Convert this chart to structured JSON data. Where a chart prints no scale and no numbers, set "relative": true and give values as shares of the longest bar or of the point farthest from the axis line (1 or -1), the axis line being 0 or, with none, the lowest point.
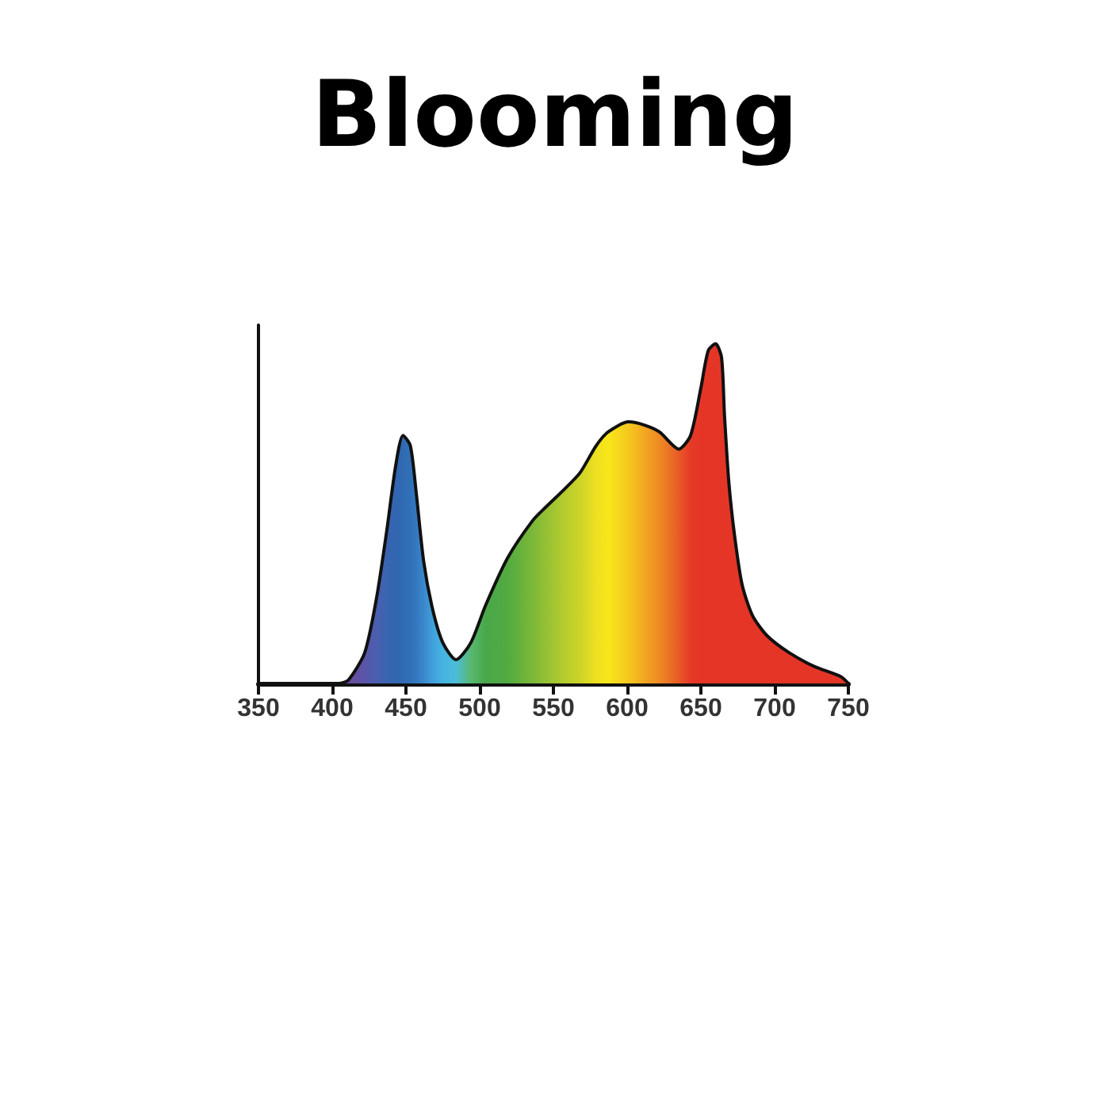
{
  "chart_data": {
    "type": "area",
    "title": "Blooming",
    "relative": true,
    "x": [
      405,
      411,
      422,
      430,
      437,
      443,
      448,
      453,
      457,
      462,
      468,
      475,
      484,
      494,
      504,
      519,
      536,
      545,
      557,
      568,
      579,
      587,
      601,
      612,
      622,
      635,
      643,
      650,
      655,
      660,
      664,
      666,
      669,
      673,
      678,
      685,
      695,
      710,
      727,
      745,
      750
    ],
    "series": [
      {
        "color": "#111111",
        "values": [
          0,
          0.01,
          0.09,
          0.25,
          0.45,
          0.64,
          0.73,
          0.7,
          0.56,
          0.36,
          0.22,
          0.12,
          0.07,
          0.12,
          0.23,
          0.37,
          0.48,
          0.52,
          0.57,
          0.62,
          0.7,
          0.74,
          0.77,
          0.76,
          0.74,
          0.69,
          0.73,
          0.87,
          0.98,
          1,
          0.96,
          0.79,
          0.59,
          0.43,
          0.29,
          0.2,
          0.14,
          0.09,
          0.05,
          0.02,
          0
        ],
        "colors": [
          "#6a4c9c",
          "#6a4c9c",
          "#5a55a8",
          "#4a5fb0",
          "#3a64b0",
          "#3266b0",
          "#2f6ab2",
          "#3070b8",
          "#3478c0",
          "#3a88cc",
          "#40a0da",
          "#46b4e2",
          "#4cbcd8",
          "#58b870",
          "#4aa84a",
          "#52aa40",
          "#7cb838",
          "#94c034",
          "#b4cc2e",
          "#ccd428",
          "#eee020",
          "#f8e61a",
          "#f5c81e",
          "#f2a622",
          "#ee8a24",
          "#e85a26",
          "#e53a27",
          "#e53527",
          "#e53527",
          "#e53527",
          "#e53527",
          "#e53527",
          "#e53527",
          "#e53527",
          "#e53527",
          "#e53527",
          "#e53527",
          "#e53527",
          "#e53527",
          "#e53527",
          "#e53527"
        ]
      }
    ],
    "xlim": [
      350,
      750
    ],
    "xticks": [
      350,
      400,
      450,
      500,
      550,
      600,
      650,
      700,
      750
    ]
  }
}
